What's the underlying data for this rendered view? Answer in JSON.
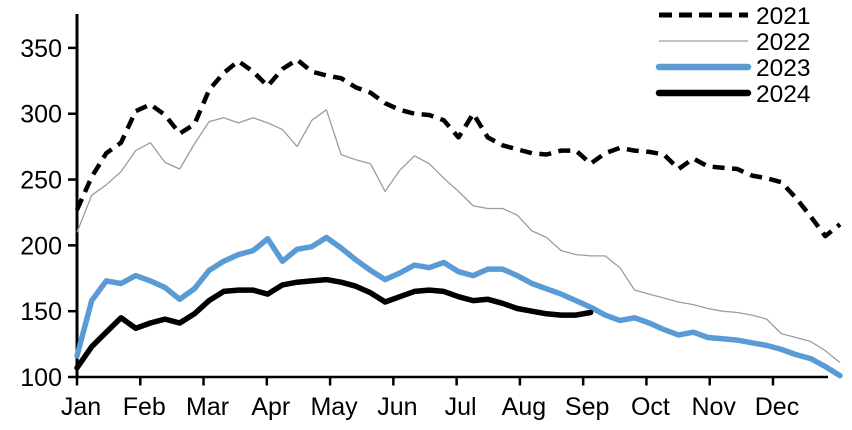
{
  "chart_data": {
    "type": "line",
    "title": "",
    "xlabel": "",
    "ylabel": "",
    "x_axis": {
      "tick_labels": [
        "Jan",
        "Feb",
        "Mar",
        "Apr",
        "May",
        "Jun",
        "Jul",
        "Aug",
        "Sep",
        "Oct",
        "Nov",
        "Dec"
      ],
      "resolution": "weekly"
    },
    "y_axis": {
      "ticks": [
        100,
        150,
        200,
        250,
        300,
        350
      ],
      "range": [
        100,
        350
      ]
    },
    "grid": false,
    "legend": {
      "position": "top-right",
      "entries": [
        "2021",
        "2022",
        "2023",
        "2024"
      ]
    },
    "colors": {
      "black": "#000000",
      "gray": "#9d9d9d",
      "blue": "#5b9bd5"
    },
    "series": [
      {
        "name": "2021",
        "color": "#000000",
        "line_style": "dashed",
        "line_width": 4.5,
        "values": [
          227,
          252,
          270,
          278,
          302,
          307,
          299,
          285,
          292,
          318,
          331,
          340,
          332,
          321,
          334,
          341,
          332,
          329,
          327,
          320,
          316,
          308,
          303,
          300,
          299,
          295,
          282,
          300,
          282,
          276,
          273,
          270,
          269,
          272,
          272,
          262,
          270,
          274,
          272,
          271,
          269,
          258,
          266,
          260,
          259,
          258,
          253,
          251,
          248,
          236,
          222,
          207,
          216
        ]
      },
      {
        "name": "2022",
        "color": "#9d9d9d",
        "line_style": "solid",
        "line_width": 1.3,
        "values": [
          210,
          238,
          246,
          256,
          272,
          278,
          263,
          258,
          277,
          294,
          297,
          293,
          297,
          293,
          288,
          275,
          295,
          303,
          269,
          265,
          262,
          241,
          257,
          268,
          262,
          251,
          241,
          230,
          228,
          228,
          223,
          211,
          206,
          196,
          193,
          192,
          192,
          183,
          166,
          163,
          160,
          157,
          155,
          152,
          150,
          149,
          147,
          144,
          133,
          130,
          127,
          120,
          111
        ]
      },
      {
        "name": "2023",
        "color": "#5b9bd5",
        "line_style": "solid",
        "line_width": 5.5,
        "values": [
          116,
          158,
          173,
          171,
          177,
          173,
          168,
          159,
          167,
          181,
          188,
          193,
          196,
          205,
          188,
          197,
          199,
          206,
          198,
          189,
          181,
          174,
          179,
          185,
          183,
          187,
          180,
          177,
          182,
          182,
          177,
          171,
          167,
          163,
          158,
          153,
          147,
          143,
          145,
          141,
          136,
          132,
          134,
          130,
          129,
          128,
          126,
          124,
          121,
          117,
          114,
          108,
          101
        ]
      },
      {
        "name": "2024",
        "color": "#000000",
        "line_style": "solid",
        "line_width": 5.5,
        "values": [
          107,
          123,
          134,
          145,
          137,
          141,
          144,
          141,
          148,
          158,
          165,
          166,
          166,
          163,
          170,
          172,
          173,
          174,
          172,
          169,
          164,
          157,
          161,
          165,
          166,
          165,
          161,
          158,
          159,
          156,
          152,
          150,
          148,
          147,
          147,
          149
        ]
      }
    ]
  }
}
